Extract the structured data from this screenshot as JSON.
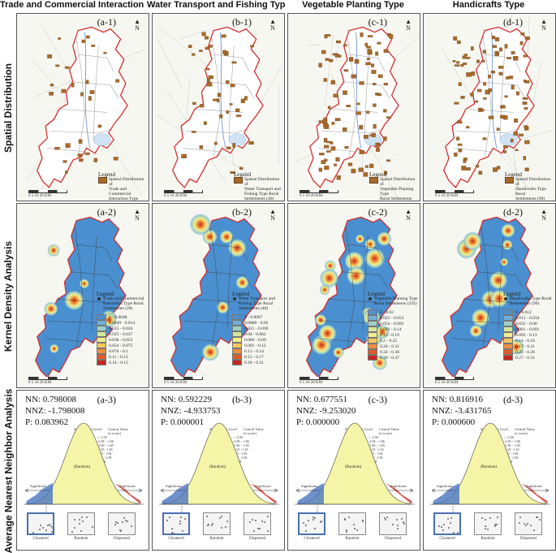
{
  "columns": [
    {
      "title": "Trade and Commercial Interaction Type",
      "map_id": "(a-1)",
      "map_legend": [
        "Spatial Distribution of",
        "Trade and Commercial",
        "Interaction Type Rural",
        "Settlements (28)"
      ],
      "kd_id": "(a-2)",
      "kd_legend": [
        "Trade and Commercial",
        "Interaction Type Rural",
        "Settlements (28)"
      ],
      "kd_classes": [
        "0 - 0.0048",
        "0.0049 - 0.014",
        "0.015 - 0.024",
        "0.025 - 0.037",
        "0.038 - 0.053",
        "0.054 - 0.075",
        "0.076 - 0.1",
        "0.11 - 0.13",
        "0.14 - 0.15"
      ],
      "nn_id": "(a-3)",
      "nn": "NN:  0.798008",
      "nnz": "NNZ:  -1.798008",
      "p": "P:  0.083962"
    },
    {
      "title": "Water Transport and Fishing Type",
      "map_id": "(b-1)",
      "map_legend": [
        "Spatial Distribution of",
        "Water Transport and",
        "Fishing Type Rural",
        "Settlements (40)"
      ],
      "kd_id": "(b-2)",
      "kd_legend": [
        "Water Transport and",
        "Fishing Type Rural",
        "Settlements (40)"
      ],
      "kd_classes": [
        "0 - 0.0067",
        "0.0068 - 0.02",
        "0.021 - 0.039",
        "0.04 - 0.062",
        "0.066 - 0.09",
        "0.091 - 0.12",
        "0.13 - 0.14",
        "0.15 - 0.17",
        "0.18 - 0.21"
      ],
      "nn_id": "(b-3)",
      "nn": "NN:  0.592229",
      "nnz": "NNZ:  -4.933753",
      "p": "P:  0.000001"
    },
    {
      "title": "Vegetable Planting Type",
      "map_id": "(c-1)",
      "map_legend": [
        "Spatial Distribution of",
        "Vegetable Planting Type",
        "Rural Settlements (235)"
      ],
      "kd_id": "(c-2)",
      "kd_legend": [
        "Vegetable Planting Type",
        "Rural Settlements (235)"
      ],
      "kd_classes": [
        "0 - 0.02",
        "0.021 - 0.053",
        "0.054 - 0.092",
        "0.093 - 0.14",
        "0.15 - 0.19",
        "0.2 - 0.25",
        "0.26 - 0.31",
        "0.32 - 0.38",
        "0.39 - 0.47"
      ],
      "nn_id": "(c-3)",
      "nn": "NN:  0.677551",
      "nnz": "NNZ:  -9.253020",
      "p": "P:  0.000000"
    },
    {
      "title": "Handicrafts Type",
      "map_id": "(d-1)",
      "map_legend": [
        "Spatial Distribution of",
        "Handicrafts Type Rural",
        "Settlements (96)"
      ],
      "kd_id": "(d-2)",
      "kd_legend": [
        "Handicrafts Type Rural",
        "Settlements (96)"
      ],
      "kd_classes": [
        "0 - 0.012",
        "0.013 - 0.034",
        "0.035 - 0.06",
        "0.061 - 0.091",
        "0.092 - 0.13",
        "0.14 - 0.16",
        "0.17 - 0.21",
        "0.22 - 0.26",
        "0.27 - 0.31"
      ],
      "nn_id": "(d-3)",
      "nn": "NN:  0.816916",
      "nnz": "NNZ:  -3.431765",
      "p": "P:  0.000600"
    }
  ],
  "rows": [
    "Spatial Distribution",
    "Kernel Density Analysis",
    "Average Nearest Neighbor Analysis"
  ],
  "legend_title": "Legend",
  "north_label": "N",
  "scale_label": "0  5 10      20 KM",
  "sig_title": [
    "Significance Level",
    "(p-value)"
  ],
  "sig_values": [
    "0.01",
    "0.05",
    "0.10",
    "---",
    "0.10",
    "0.05",
    "0.01"
  ],
  "crit_title": [
    "Critical Value",
    "(z-score)"
  ],
  "crit_values": [
    "< -2.58",
    "-2.58 - -1.96",
    "-1.96 - -1.65",
    "-1.65 - 1.65",
    "1.65 - 1.96",
    "1.96 - 2.58",
    "> 2.58"
  ],
  "bell_random": "(Random)",
  "bell_sig_left": "Significant",
  "bell_sig_right": "Significant",
  "pattern_labels": [
    "Clustered",
    "Random",
    "Dispersed"
  ],
  "colors": {
    "boundary": "#d42a2a",
    "settlement": "#a86a2a",
    "kd_base": "#4a8fcf",
    "kd_ramp": [
      "#4f8fcf",
      "#6eb0d8",
      "#9fd0c8",
      "#d3e79c",
      "#f2ee8a",
      "#f8c85a",
      "#f0903c",
      "#e05a2a",
      "#c8271e"
    ],
    "bell_fill": "#f5f5a8"
  }
}
